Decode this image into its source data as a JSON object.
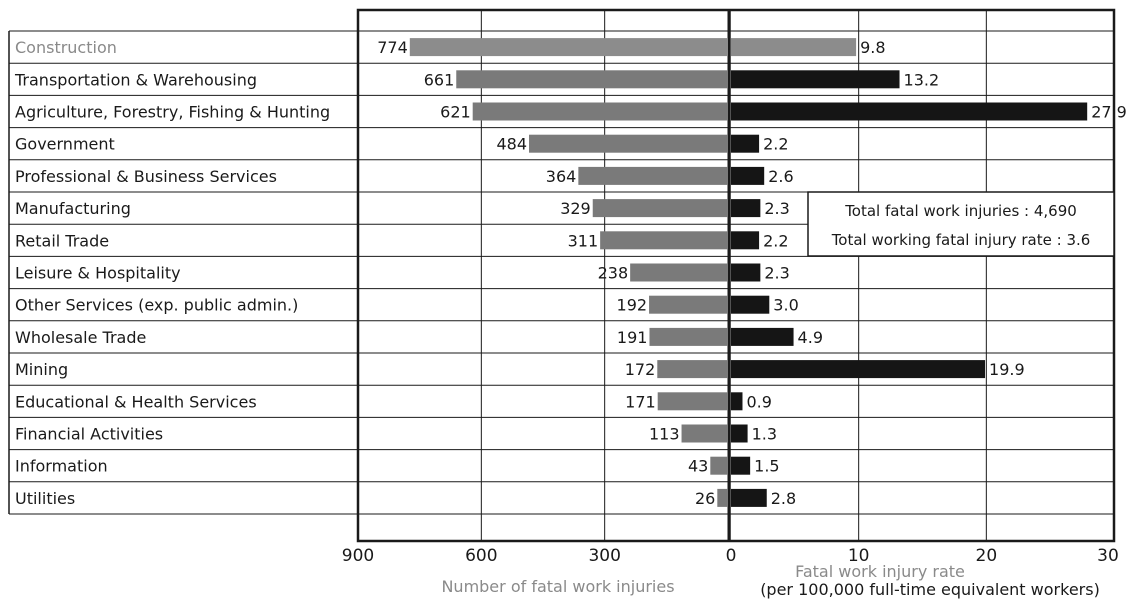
{
  "chart_data": {
    "type": "bar",
    "layout": "back-to-back horizontal bars",
    "categories": [
      "Construction",
      "Transportation & Warehousing",
      "Agriculture, Forestry, Fishing & Hunting",
      "Government",
      "Professional & Business Services",
      "Manufacturing",
      "Retail Trade",
      "Leisure & Hospitality",
      "Other Services (exp. public admin.)",
      "Wholesale Trade",
      "Mining",
      "Educational & Health Services",
      "Financial Activities",
      "Information",
      "Utilities"
    ],
    "value_labels": {
      "injuries": [
        "774",
        "661",
        "621",
        "484",
        "364",
        "329",
        "311",
        "238",
        "192",
        "191",
        "172",
        "171",
        "113",
        "43",
        "26"
      ],
      "rate": [
        "9.8",
        "13.2",
        "27.9",
        "2.2",
        "2.6",
        "2.3",
        "2.2",
        "2.3",
        "3.0",
        "4.9",
        "19.9",
        "0.9",
        "1.3",
        "1.5",
        "2.8"
      ]
    },
    "series": [
      {
        "name": "Number of fatal work injuries",
        "values": [
          774,
          661,
          621,
          484,
          364,
          329,
          311,
          238,
          192,
          191,
          172,
          171,
          113,
          43,
          26
        ],
        "xlim": [
          900,
          0
        ],
        "ticks": [
          "900",
          "600",
          "300",
          "0"
        ]
      },
      {
        "values": [
          9.8,
          13.2,
          27.9,
          2.2,
          2.6,
          2.3,
          2.2,
          2.3,
          3.0,
          4.9,
          19.9,
          0.9,
          1.3,
          1.5,
          2.8
        ],
        "xlim": [
          0,
          30
        ],
        "ticks": [
          "10",
          "20",
          "30"
        ]
      }
    ],
    "xlabel_left": "Number of fatal work injuries",
    "xlabel_right_line1": "Fatal work injury rate",
    "xlabel_right_line2": "(per 100,000 full-time equivalent workers)",
    "annotation_line1": "Total fatal work injuries : 4,690",
    "annotation_line2": "Total working fatal injury rate : 3.6",
    "grid": true,
    "highlight_category": "Construction",
    "colors": {
      "bar_left": "#7a7a7a",
      "bar_left_highlight": "#8c8c8c",
      "bar_right": "#151515",
      "bar_right_highlight": "#8c8c8c",
      "grid": "#1a1a1a",
      "highlight_text": "#8a8a8a",
      "text": "#1a1a1a"
    }
  }
}
